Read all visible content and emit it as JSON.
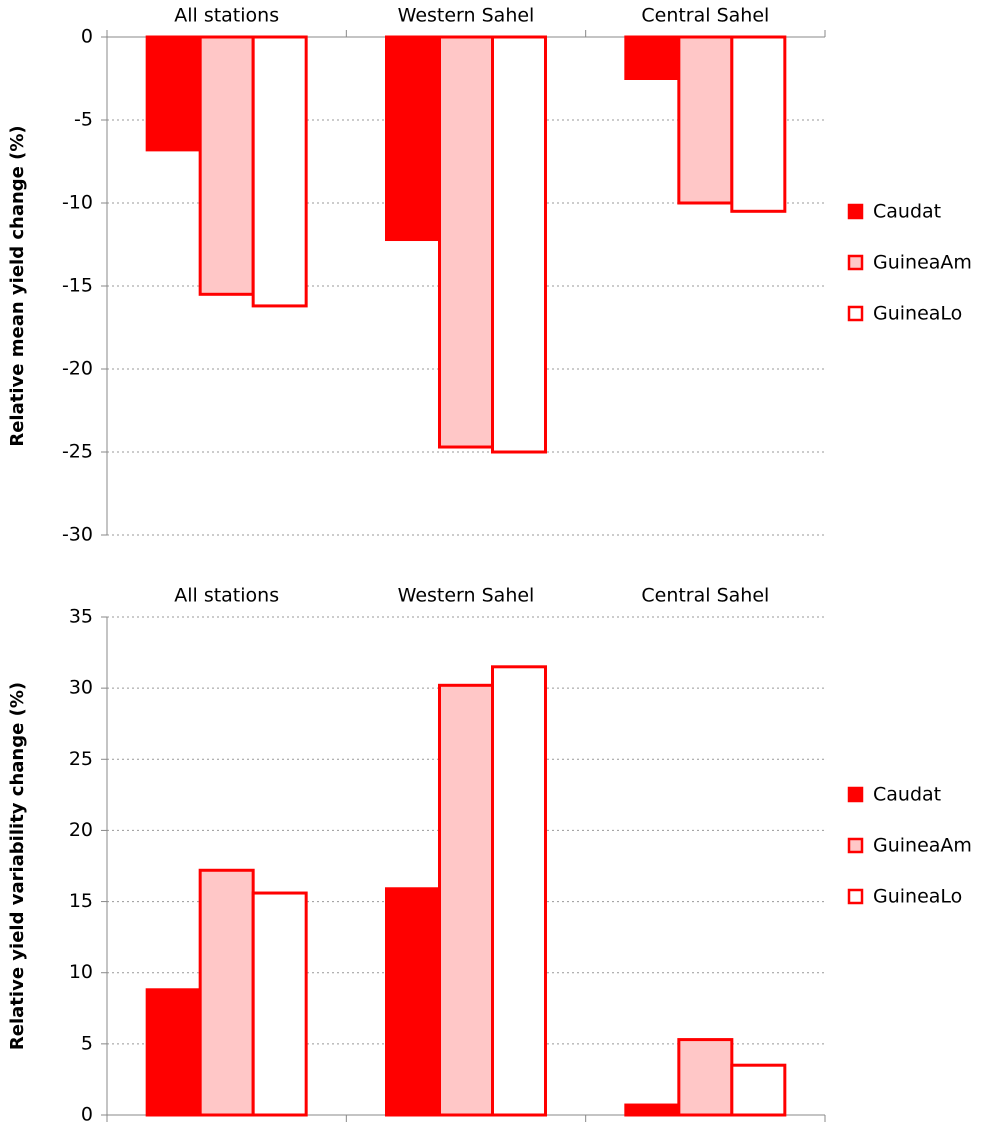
{
  "chart_data": [
    {
      "type": "bar",
      "ylabel": "Relative mean yield change (%)",
      "categories": [
        "All stations",
        "Western Sahel",
        "Central Sahel"
      ],
      "series": [
        {
          "name": "Caudat",
          "color": "#ff0000",
          "edgecolor": "#ff0000",
          "values": [
            -6.8,
            -12.2,
            -2.5
          ]
        },
        {
          "name": "GuineaAm",
          "color": "#ffc7c7",
          "edgecolor": "#ff0000",
          "values": [
            -15.5,
            -24.7,
            -10.0
          ]
        },
        {
          "name": "GuineaLo",
          "color": "#ffffff",
          "edgecolor": "#ff0000",
          "values": [
            -16.2,
            -25.0,
            -10.5
          ]
        }
      ],
      "ylim": [
        -30,
        0
      ],
      "yticks": [
        0,
        -5,
        -10,
        -15,
        -20,
        -25,
        -30
      ],
      "grid": true,
      "legend": "right"
    },
    {
      "type": "bar",
      "ylabel": "Relative yield variability change (%)",
      "categories": [
        "All stations",
        "Western Sahel",
        "Central Sahel"
      ],
      "series": [
        {
          "name": "Caudat",
          "color": "#ff0000",
          "edgecolor": "#ff0000",
          "values": [
            8.8,
            15.9,
            0.7
          ]
        },
        {
          "name": "GuineaAm",
          "color": "#ffc7c7",
          "edgecolor": "#ff0000",
          "values": [
            17.2,
            30.2,
            5.3
          ]
        },
        {
          "name": "GuineaLo",
          "color": "#ffffff",
          "edgecolor": "#ff0000",
          "values": [
            15.6,
            31.5,
            3.5
          ]
        }
      ],
      "ylim": [
        0,
        35
      ],
      "yticks": [
        0,
        5,
        10,
        15,
        20,
        25,
        30,
        35
      ],
      "grid": true,
      "legend": "right"
    }
  ]
}
